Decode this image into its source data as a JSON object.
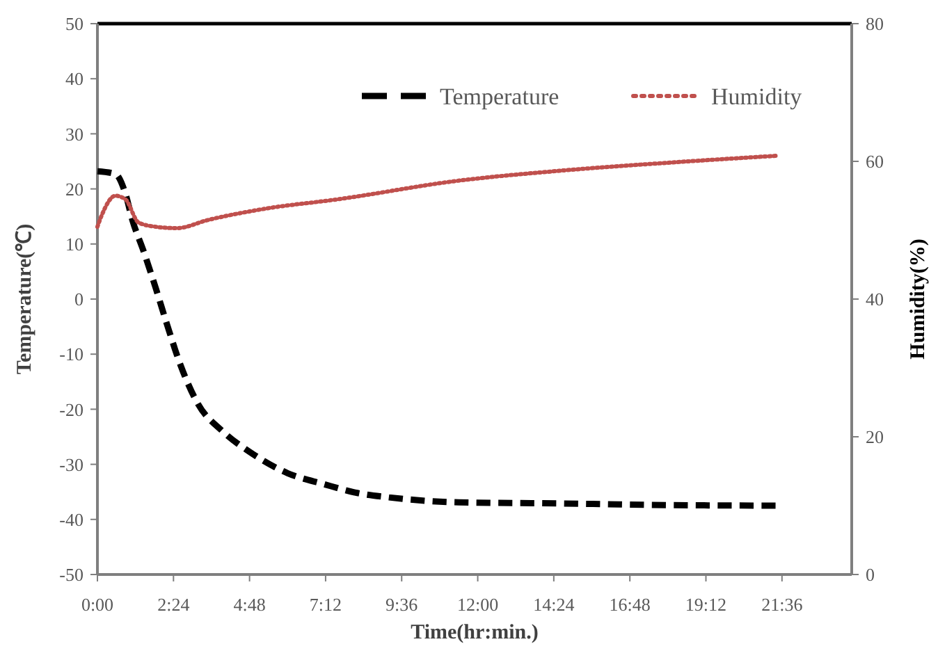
{
  "chart_data": {
    "type": "line",
    "xlabel": "Time(hr:min.)",
    "ylabel": "Temperature(℃)",
    "y2label": "Humidity(%)",
    "xlim": [
      0,
      23.8
    ],
    "xticks": [
      {
        "value": 0,
        "label": "0:00"
      },
      {
        "value": 2.4,
        "label": "2:24"
      },
      {
        "value": 4.8,
        "label": "4:48"
      },
      {
        "value": 7.2,
        "label": "7:12"
      },
      {
        "value": 9.6,
        "label": "9:36"
      },
      {
        "value": 12,
        "label": "12:00"
      },
      {
        "value": 14.4,
        "label": "14:24"
      },
      {
        "value": 16.8,
        "label": "16:48"
      },
      {
        "value": 19.2,
        "label": "19:12"
      },
      {
        "value": 21.6,
        "label": "21:36"
      }
    ],
    "ylim": [
      -50,
      50
    ],
    "yticks": [
      -50,
      -40,
      -30,
      -20,
      -10,
      0,
      10,
      20,
      30,
      40,
      50
    ],
    "y2lim": [
      0,
      80
    ],
    "y2ticks": [
      0,
      20,
      40,
      60,
      80
    ],
    "legend": "top right",
    "grid": false,
    "series": [
      {
        "name": "Temperature",
        "color": "#000000",
        "line_style": "dashed",
        "x": [
          0,
          0.57,
          0.88,
          1.1,
          1.45,
          1.84,
          2.19,
          2.63,
          3.16,
          3.95,
          4.82,
          6.0,
          7.15,
          8.2,
          9.2,
          11.4,
          14.5,
          18,
          21.4
        ],
        "values": [
          23.2,
          22.7,
          19.2,
          14.4,
          8.8,
          2.0,
          -4.5,
          -12.1,
          -18.9,
          -24,
          -27.8,
          -31.6,
          -33.6,
          -35.2,
          -36,
          -36.9,
          -37.1,
          -37.4,
          -37.5
        ]
      },
      {
        "name": "Humidity",
        "color": "#c0504d",
        "line_style": "dotted",
        "axis": "y2",
        "x": [
          0,
          0.13,
          0.57,
          0.88,
          1.3,
          1.84,
          2.5,
          3.5,
          5.26,
          7.6,
          11.4,
          14.5,
          18,
          21.4
        ],
        "values": [
          50.5,
          52.1,
          55.0,
          54.5,
          51.1,
          50.5,
          50.3,
          51.5,
          53.1,
          54.5,
          57.2,
          58.6,
          59.8,
          60.8
        ]
      }
    ]
  }
}
